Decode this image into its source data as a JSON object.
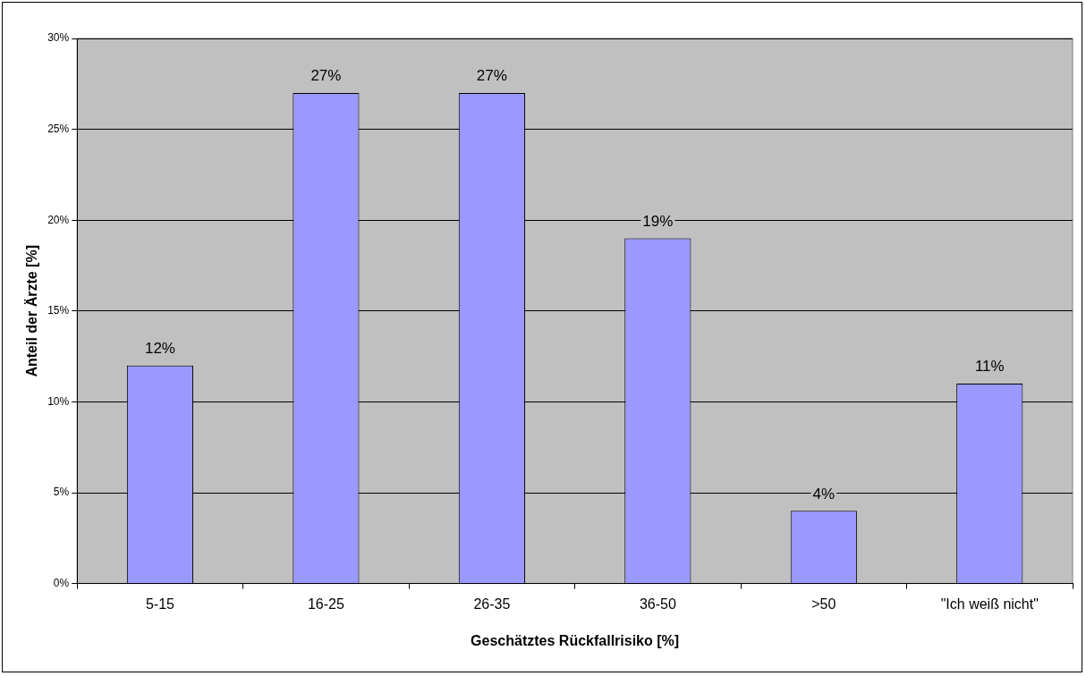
{
  "chart_data": {
    "type": "bar",
    "xlabel": "Geschätztes Rückfallrisiko [%]",
    "ylabel": "Anteil der Ärzte [%]",
    "categories": [
      "5-15",
      "16-25",
      "26-35",
      "36-50",
      ">50",
      "\"Ich weiß nicht\""
    ],
    "values": [
      12,
      27,
      27,
      19,
      4,
      11
    ],
    "color": "#9999ff",
    "value_labels": [
      "12%",
      "27%",
      "27%",
      "19%",
      "4%",
      "11%"
    ],
    "ylim": [
      0,
      30
    ],
    "yticks": [
      {
        "value": 0,
        "label": "0%"
      },
      {
        "value": 5,
        "label": "5%"
      },
      {
        "value": 10,
        "label": "10%"
      },
      {
        "value": 15,
        "label": "15%"
      },
      {
        "value": 20,
        "label": "20%"
      },
      {
        "value": 25,
        "label": "25%"
      },
      {
        "value": 30,
        "label": "30%"
      }
    ],
    "grid": "y",
    "legend": false
  }
}
